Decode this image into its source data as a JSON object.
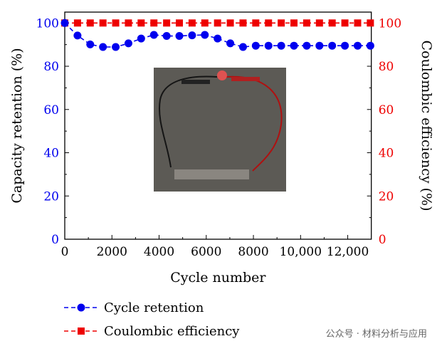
{
  "chart_data": {
    "type": "line",
    "xlabel": "Cycle number",
    "ylabel_left": "Capacity retention (%)",
    "ylabel_right": "Coulombic efficiency (%)",
    "xlim": [
      0,
      13000
    ],
    "ylim": [
      0,
      100
    ],
    "xticks": [
      0,
      2000,
      4000,
      6000,
      8000,
      10000,
      12000
    ],
    "xtick_labels": [
      "0",
      "2000",
      "4000",
      "6000",
      "8000",
      "10,000",
      "12,000"
    ],
    "yticks": [
      0,
      20,
      40,
      60,
      80,
      100
    ],
    "x": [
      0,
      540,
      1080,
      1620,
      2160,
      2700,
      3240,
      3780,
      4320,
      4860,
      5400,
      5940,
      6480,
      7020,
      7560,
      8100,
      8640,
      9180,
      9720,
      10260,
      10800,
      11340,
      11880,
      12420,
      12960
    ],
    "series": [
      {
        "name": "Cycle retention",
        "color": "#0000ee",
        "marker": "circle",
        "axis": "left",
        "values": [
          100,
          94.2,
          90.1,
          88.9,
          88.9,
          90.6,
          92.8,
          94.5,
          94.0,
          94.0,
          94.3,
          94.5,
          92.8,
          90.6,
          88.9,
          89.5,
          89.5,
          89.5,
          89.5,
          89.5,
          89.5,
          89.5,
          89.5,
          89.5,
          89.5
        ]
      },
      {
        "name": "Coulombic efficiency",
        "color": "#ee0000",
        "marker": "square",
        "axis": "right",
        "values": [
          100,
          100,
          100,
          100,
          100,
          100,
          100,
          100,
          100,
          100,
          100,
          100,
          100,
          100,
          100,
          100,
          100,
          100,
          100,
          100,
          100,
          100,
          100,
          100,
          100
        ]
      }
    ],
    "legend_position": "bottom-left",
    "inset": "photo of LED circuit"
  },
  "watermark": "公众号 · 材料分析与应用"
}
